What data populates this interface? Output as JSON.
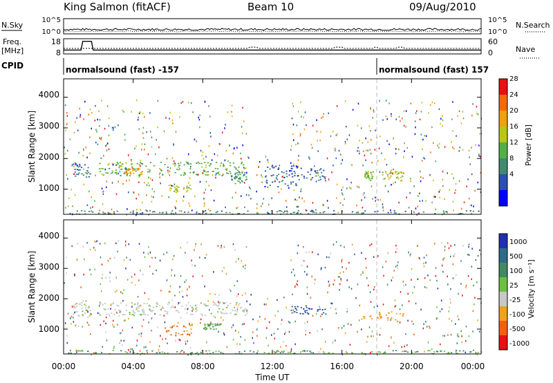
{
  "header": {
    "station": "King Salmon (fitACF)",
    "beam": "Beam 10",
    "date": "09/Aug/2010"
  },
  "small_panels": {
    "nsky_label": "N.Sky",
    "nsearch_label": "N.Search",
    "noise_ticks": [
      "10^5",
      "10^0"
    ],
    "freq_label": "Freq.",
    "freq_unit": "[MHz]",
    "freq_ticks": [
      "18",
      "8"
    ],
    "nave_label": "Nave",
    "nave_ticks": [
      "60",
      "0"
    ],
    "cpid_label": "CPID",
    "cpid_segments": [
      {
        "text": "normalsound (fast) -157"
      },
      {
        "text": "normalsound (fast) 157"
      }
    ],
    "cpid_switch_hour": 18.0
  },
  "time_axis": {
    "label": "Time UT",
    "ticks": [
      "00:00",
      "04:00",
      "08:00",
      "12:00",
      "16:00",
      "20:00",
      "00:00"
    ],
    "range_hours": [
      0,
      24
    ]
  },
  "panels": [
    {
      "ylabel": "Slant Range [km]",
      "yticks": [
        "1000",
        "2000",
        "3000",
        "4000"
      ],
      "colorbar_label": "Power [dB]",
      "colorbar_ticks": [
        "4",
        "8",
        "12",
        "16",
        "20",
        "24",
        "28"
      ],
      "colors": [
        "#0000ff",
        "#2a4fb4",
        "#3f8a70",
        "#52b048",
        "#b8c61a",
        "#f0a010",
        "#f06a10",
        "#e81010"
      ]
    },
    {
      "ylabel": "Slant Range [km]",
      "yticks": [
        "1000",
        "2000",
        "3000",
        "4000"
      ],
      "colorbar_label": "Velocity [m s⁻¹]",
      "colorbar_ticks": [
        "1000",
        "500",
        "100",
        "25",
        "-25",
        "-100",
        "-500",
        "-1000"
      ],
      "colors": [
        "#2030b0",
        "#2c6c8a",
        "#3f8a62",
        "#6ac040",
        "#c8c8c8",
        "#f0a020",
        "#f06010",
        "#e81010"
      ]
    }
  ],
  "chart_data": [
    {
      "type": "line",
      "title": "King Salmon (fitACF)",
      "ylabel": "Freq. [MHz]",
      "series": [
        {
          "name": "Freq.",
          "x": [
            0,
            1.0,
            1.1,
            1.6,
            1.7,
            24
          ],
          "values": [
            10,
            10,
            17,
            17,
            10,
            10
          ]
        },
        {
          "name": "Nave",
          "x": [
            0,
            10.6,
            10.7,
            11.1,
            11.2,
            15.5,
            15.6,
            16.0,
            16.1,
            17.8,
            17.9,
            18.0,
            18.1,
            19.1,
            19.2,
            19.5,
            19.6,
            24
          ],
          "values": [
            20,
            20,
            26,
            26,
            20,
            20,
            26,
            26,
            20,
            20,
            26,
            26,
            20,
            20,
            26,
            26,
            20,
            20
          ]
        }
      ],
      "ylim": [
        8,
        18
      ]
    },
    {
      "type": "heatmap",
      "title": "Beam 10",
      "xlabel": "Time UT",
      "ylabel": "Slant Range [km]",
      "colorbar": "Power [dB]",
      "xlim": [
        0,
        24
      ],
      "ylim": [
        180,
        4600
      ],
      "regions": [
        {
          "t": [
            0.5,
            1.5
          ],
          "r": [
            1400,
            1900
          ],
          "v": 6
        },
        {
          "t": [
            2.0,
            10.5
          ],
          "r": [
            1450,
            1900
          ],
          "v": 12
        },
        {
          "t": [
            3.5,
            4.5
          ],
          "r": [
            1500,
            1700
          ],
          "v": 20
        },
        {
          "t": [
            6.0,
            7.3
          ],
          "r": [
            900,
            1150
          ],
          "v": 16
        },
        {
          "t": [
            9.5,
            10.5
          ],
          "r": [
            1200,
            1600
          ],
          "v": 9
        },
        {
          "t": [
            11.5,
            13.5
          ],
          "r": [
            1100,
            1800
          ],
          "v": 5
        },
        {
          "t": [
            13.5,
            15.0
          ],
          "r": [
            1300,
            1700
          ],
          "v": 6
        },
        {
          "t": [
            17.2,
            17.8
          ],
          "r": [
            1300,
            1600
          ],
          "v": 14
        },
        {
          "t": [
            18.3,
            19.5
          ],
          "r": [
            1350,
            1600
          ],
          "v": 16
        },
        {
          "t": [
            0,
            24
          ],
          "r": [
            200,
            320
          ],
          "v": 7
        }
      ]
    },
    {
      "type": "heatmap",
      "xlabel": "Time UT",
      "ylabel": "Slant Range [km]",
      "colorbar": "Velocity [m s⁻¹]",
      "xlim": [
        0,
        24
      ],
      "ylim": [
        180,
        4600
      ],
      "regions": [
        {
          "t": [
            0.5,
            1.5
          ],
          "r": [
            1400,
            1900
          ],
          "v": 0
        },
        {
          "t": [
            2.0,
            10.5
          ],
          "r": [
            1450,
            1900
          ],
          "v": 0
        },
        {
          "t": [
            5.8,
            7.5
          ],
          "r": [
            800,
            1200
          ],
          "v": -500
        },
        {
          "t": [
            8.0,
            9.0
          ],
          "r": [
            1000,
            1200
          ],
          "v": 100
        },
        {
          "t": [
            13.0,
            15.0
          ],
          "r": [
            1500,
            1800
          ],
          "v": 500
        },
        {
          "t": [
            17.0,
            19.5
          ],
          "r": [
            1300,
            1600
          ],
          "v": -25
        },
        {
          "t": [
            0,
            24
          ],
          "r": [
            200,
            320
          ],
          "v": 100
        }
      ]
    }
  ]
}
